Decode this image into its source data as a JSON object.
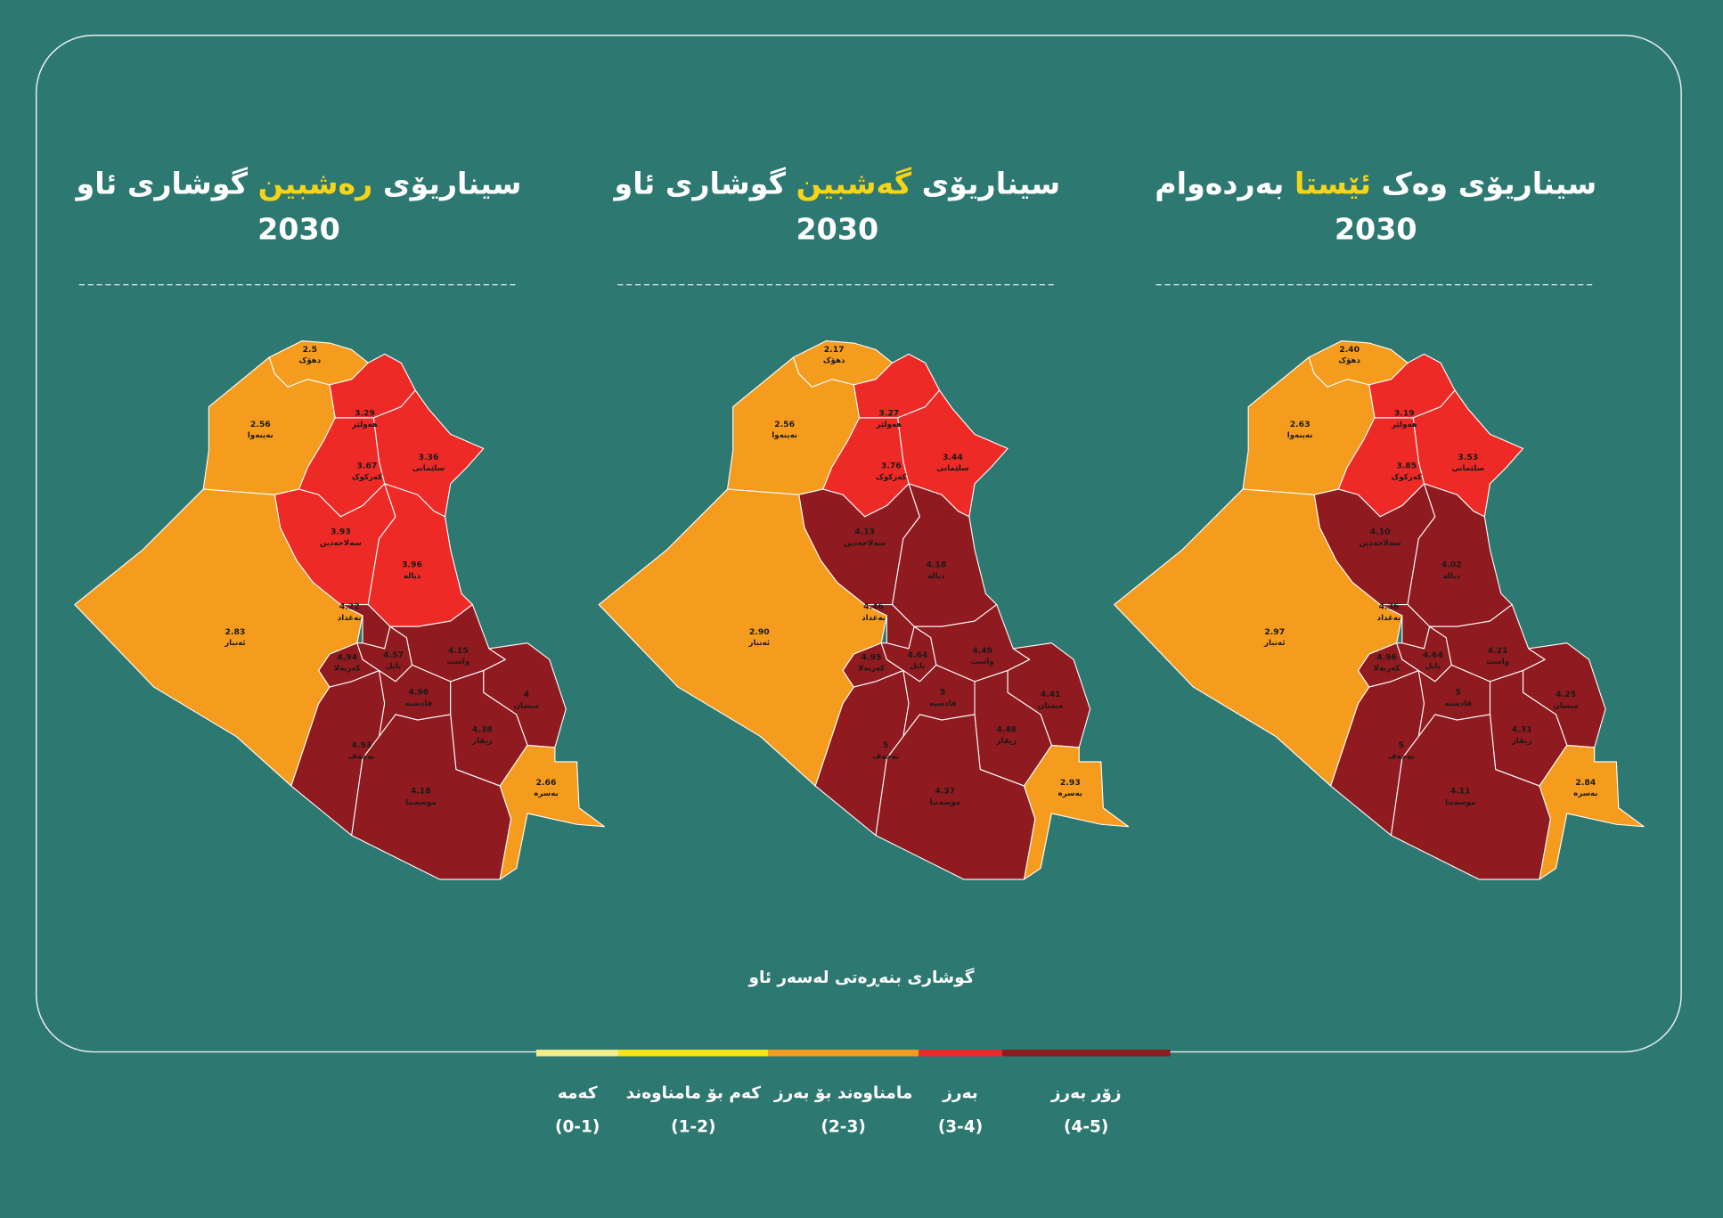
{
  "maps": [
    {
      "title_before": "سیناریۆی",
      "title_highlight": "رەشبین",
      "title_after": "گوشاری ئاو",
      "year": "2030",
      "regions": [
        "دهۆک",
        "نەینەوا",
        "هەولێر",
        "سلێمانی",
        "کەرکوک",
        "سەلاحەدین",
        "دیالە",
        "ئەنبار",
        "بەغداد",
        "کەربەلا",
        "بابل",
        "واست",
        "نەجەف",
        "قادسیە",
        "میسان",
        "زیقار",
        "موسەننا",
        "بەسرە"
      ],
      "values": [
        2.5,
        2.56,
        3.29,
        3.36,
        3.67,
        3.93,
        3.96,
        2.83,
        4.22,
        4.94,
        4.57,
        4.15,
        4.93,
        4.96,
        4,
        4.38,
        4.18,
        2.66
      ],
      "value_labels": [
        "2.5",
        "2.56",
        "3.29",
        "3.36",
        "3.67",
        "3.93",
        "3.96",
        "2.83",
        "4.22",
        "4.94",
        "4.57",
        "4.15",
        "4.93",
        "4.96",
        "4",
        "4.38",
        "4.18",
        "2.66"
      ]
    },
    {
      "title_before": "سیناریۆی",
      "title_highlight": "گەشبین",
      "title_after": "گوشاری ئاو",
      "year": "2030",
      "regions": [
        "دهۆک",
        "نەینەوا",
        "هەولێر",
        "سلێمانی",
        "کەرکوک",
        "سەلاحەدین",
        "دیالە",
        "ئەنبار",
        "بەغداد",
        "کەربەلا",
        "بابل",
        "واست",
        "نەجەف",
        "قادسیە",
        "میسان",
        "زیقار",
        "موسەننا",
        "بەسرە"
      ],
      "values": [
        2.17,
        2.56,
        3.27,
        3.44,
        3.76,
        4.13,
        4.18,
        2.9,
        4.46,
        4.95,
        4.64,
        4.49,
        5,
        5,
        4.41,
        4.48,
        4.37,
        2.93
      ],
      "value_labels": [
        "2.17",
        "2.56",
        "3.27",
        "3.44",
        "3.76",
        "4.13",
        "4.18",
        "2.90",
        "4.46",
        "4.95",
        "4.64",
        "4.49",
        "5",
        "5",
        "4.41",
        "4.48",
        "4.37",
        "2.93"
      ]
    },
    {
      "title_before": "سیناریۆی وەک",
      "title_highlight": "ئێستا",
      "title_after": "بەردەوام",
      "year": "2030",
      "regions": [
        "دهۆک",
        "نەینەوا",
        "هەولێر",
        "سلێمانی",
        "کەرکوک",
        "سەلاحەدین",
        "دیالە",
        "ئەنبار",
        "بەغداد",
        "کەربەلا",
        "بابل",
        "واست",
        "نەجەف",
        "قادسیە",
        "میسان",
        "زیقار",
        "موسەننا",
        "بەسرە"
      ],
      "values": [
        2.4,
        2.63,
        3.19,
        3.53,
        3.85,
        4.1,
        4.02,
        2.97,
        4.36,
        4.96,
        4.64,
        4.21,
        5,
        5,
        4.25,
        4.31,
        4.11,
        2.84
      ],
      "value_labels": [
        "2.40",
        "2.63",
        "3.19",
        "3.53",
        "3.85",
        "4.10",
        "4.02",
        "2.97",
        "4.36",
        "4.96",
        "4.64",
        "4.21",
        "5",
        "5",
        "4.25",
        "4.31",
        "4.11",
        "2.84"
      ]
    }
  ],
  "legend": {
    "title": "گوشاری بنەڕەتی لەسەر ئاو",
    "items": [
      {
        "name": "کەمە",
        "range": "(0-1)",
        "color": "#f3ee8a"
      },
      {
        "name": "کەم بۆ مامناوەند",
        "range": "(1-2)",
        "color": "#fbe415"
      },
      {
        "name": "مامناوەند بۆ بەرز",
        "range": "(2-3)",
        "color": "#f59c1e"
      },
      {
        "name": "بەرز",
        "range": "(3-4)",
        "color": "#ee2a26"
      },
      {
        "name": "زۆر بەرز",
        "range": "(4-5)",
        "color": "#8f1a1f"
      }
    ]
  }
}
